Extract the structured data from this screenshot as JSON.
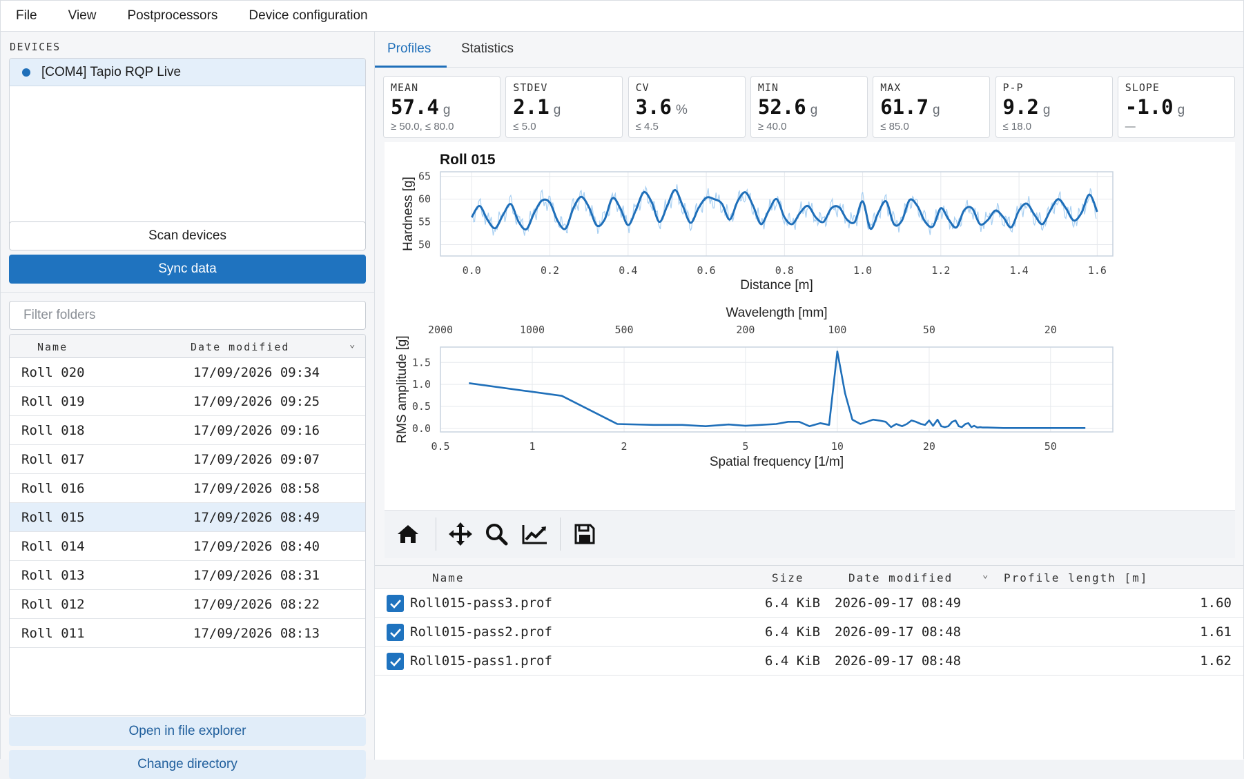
{
  "menu": [
    "File",
    "View",
    "Postprocessors",
    "Device configuration"
  ],
  "left": {
    "devices_title": "DEVICES",
    "device": "[COM4] Tapio RQP Live",
    "scan_label": "Scan devices",
    "sync_label": "Sync data",
    "filter_placeholder": "Filter folders",
    "table": {
      "col_name": "Name",
      "col_date": "Date modified",
      "rows": [
        {
          "name": "Roll 020",
          "date": "17/09/2026 09:34"
        },
        {
          "name": "Roll 019",
          "date": "17/09/2026 09:25"
        },
        {
          "name": "Roll 018",
          "date": "17/09/2026 09:16"
        },
        {
          "name": "Roll 017",
          "date": "17/09/2026 09:07"
        },
        {
          "name": "Roll 016",
          "date": "17/09/2026 08:58"
        },
        {
          "name": "Roll 015",
          "date": "17/09/2026 08:49"
        },
        {
          "name": "Roll 014",
          "date": "17/09/2026 08:40"
        },
        {
          "name": "Roll 013",
          "date": "17/09/2026 08:31"
        },
        {
          "name": "Roll 012",
          "date": "17/09/2026 08:22"
        },
        {
          "name": "Roll 011",
          "date": "17/09/2026 08:13"
        }
      ],
      "selected_index": 5
    },
    "open_label": "Open in file explorer",
    "change_label": "Change directory"
  },
  "tabs": [
    "Profiles",
    "Statistics"
  ],
  "active_tab": "Profiles",
  "stats": [
    {
      "label": "MEAN",
      "value": "57.4",
      "unit": "g",
      "limit": "≥ 50.0, ≤ 80.0"
    },
    {
      "label": "STDEV",
      "value": "2.1",
      "unit": "g",
      "limit": "≤ 5.0"
    },
    {
      "label": "CV",
      "value": "3.6",
      "unit": "%",
      "limit": "≤ 4.5"
    },
    {
      "label": "MIN",
      "value": "52.6",
      "unit": "g",
      "limit": "≥ 40.0"
    },
    {
      "label": "MAX",
      "value": "61.7",
      "unit": "g",
      "limit": "≤ 85.0"
    },
    {
      "label": "P-P",
      "value": "9.2",
      "unit": "g",
      "limit": "≤ 18.0"
    },
    {
      "label": "SLOPE",
      "value": "-1.0",
      "unit": "g",
      "limit": "—"
    }
  ],
  "files": {
    "columns": {
      "name": "Name",
      "size": "Size",
      "date": "Date modified",
      "length": "Profile length [m]"
    },
    "rows": [
      {
        "name": "Roll015-pass3.prof",
        "size": "6.4 KiB",
        "date": "2026-09-17 08:49",
        "length": "1.60",
        "checked": true
      },
      {
        "name": "Roll015-pass2.prof",
        "size": "6.4 KiB",
        "date": "2026-09-17 08:48",
        "length": "1.61",
        "checked": true
      },
      {
        "name": "Roll015-pass1.prof",
        "size": "6.4 KiB",
        "date": "2026-09-17 08:48",
        "length": "1.62",
        "checked": true
      }
    ]
  },
  "colors": {
    "accent": "#1f6fb9",
    "raw_trace": "#a9d0f2",
    "selection": "#e4effa"
  },
  "toolbar_icons": [
    "home-icon",
    "pan-icon",
    "zoom-icon",
    "configure-subplots-icon",
    "save-icon"
  ],
  "chart_data": [
    {
      "type": "line",
      "title": "Roll 015",
      "xlabel": "Distance [m]",
      "ylabel": "Hardness [g]",
      "xlim": [
        -0.08,
        1.64
      ],
      "ylim": [
        47.5,
        66
      ],
      "xticks": [
        "0.0",
        "0.2",
        "0.4",
        "0.6",
        "0.8",
        "1.0",
        "1.2",
        "1.4",
        "1.6"
      ],
      "yticks": [
        "50",
        "55",
        "60",
        "65"
      ],
      "grid": true,
      "series": [
        {
          "x": [
            0.0,
            0.02,
            0.04,
            0.06,
            0.08,
            0.1,
            0.12,
            0.14,
            0.16,
            0.18,
            0.2,
            0.22,
            0.24,
            0.26,
            0.28,
            0.3,
            0.32,
            0.34,
            0.36,
            0.38,
            0.4,
            0.42,
            0.44,
            0.46,
            0.48,
            0.5,
            0.52,
            0.54,
            0.56,
            0.58,
            0.6,
            0.62,
            0.64,
            0.66,
            0.68,
            0.7,
            0.72,
            0.74,
            0.76,
            0.78,
            0.8,
            0.82,
            0.84,
            0.86,
            0.88,
            0.9,
            0.92,
            0.94,
            0.96,
            0.98,
            1.0,
            1.02,
            1.04,
            1.06,
            1.08,
            1.1,
            1.12,
            1.14,
            1.16,
            1.18,
            1.2,
            1.22,
            1.24,
            1.26,
            1.28,
            1.3,
            1.32,
            1.34,
            1.36,
            1.38,
            1.4,
            1.42,
            1.44,
            1.46,
            1.48,
            1.5,
            1.52,
            1.54,
            1.56,
            1.58,
            1.6
          ],
          "values": [
            56.0,
            58.5,
            55.5,
            53.6,
            56.5,
            58.9,
            55.0,
            53.4,
            57.0,
            59.7,
            59.2,
            55.2,
            53.5,
            58.0,
            60.5,
            58.2,
            54.2,
            55.5,
            60.2,
            58.0,
            54.3,
            57.6,
            61.5,
            59.4,
            55.0,
            58.5,
            62.0,
            58.5,
            54.8,
            58.0,
            60.3,
            60.0,
            59.0,
            55.5,
            59.5,
            61.5,
            58.5,
            54.5,
            57.5,
            60.0,
            56.0,
            54.5,
            57.0,
            58.5,
            56.0,
            55.0,
            58.0,
            58.2,
            55.5,
            55.0,
            59.5,
            53.5,
            57.0,
            59.5,
            54.5,
            55.2,
            59.8,
            58.5,
            55.0,
            54.0,
            58.0,
            55.5,
            53.8,
            57.6,
            58.0,
            54.5,
            55.4,
            57.5,
            56.0,
            53.8,
            57.5,
            59.0,
            56.5,
            54.5,
            57.5,
            60.0,
            58.0,
            55.3,
            57.0,
            61.0,
            57.2
          ]
        }
      ]
    },
    {
      "type": "line",
      "xlabel": "Spatial frequency [1/m]",
      "ylabel": "RMS amplitude [g]",
      "x2label": "Wavelength [mm]",
      "xscale": "log",
      "xlim": [
        0.5,
        80
      ],
      "ylim": [
        -0.08,
        1.85
      ],
      "xticks": [
        "0.5",
        "1",
        "2",
        "5",
        "10",
        "20",
        "50"
      ],
      "x2ticks": [
        "2000",
        "1000",
        "500",
        "200",
        "100",
        "50",
        "20"
      ],
      "yticks": [
        "0.0",
        "0.5",
        "1.0",
        "1.5"
      ],
      "grid": true,
      "series": [
        {
          "x": [
            0.62,
            1.25,
            1.9,
            2.5,
            3.1,
            3.7,
            4.4,
            5.0,
            5.6,
            6.3,
            6.9,
            7.5,
            8.1,
            8.8,
            9.4,
            10.0,
            10.6,
            11.2,
            11.9,
            12.5,
            13.1,
            13.7,
            14.4,
            15.0,
            15.6,
            16.3,
            16.9,
            17.5,
            18.1,
            18.8,
            19.4,
            20.0,
            20.6,
            21.3,
            21.9,
            22.5,
            23.1,
            23.8,
            24.4,
            25.0,
            25.6,
            26.3,
            26.9,
            27.5,
            28.1,
            28.8,
            29.4,
            30.0,
            31.0,
            35.0,
            40.0,
            50.0,
            65.0
          ],
          "values": [
            1.03,
            0.74,
            0.1,
            0.08,
            0.08,
            0.05,
            0.09,
            0.06,
            0.08,
            0.1,
            0.15,
            0.15,
            0.05,
            0.12,
            0.08,
            1.75,
            0.8,
            0.2,
            0.1,
            0.15,
            0.2,
            0.18,
            0.15,
            0.03,
            0.1,
            0.05,
            0.1,
            0.18,
            0.15,
            0.1,
            0.08,
            0.18,
            0.06,
            0.2,
            0.05,
            0.03,
            0.05,
            0.15,
            0.18,
            0.05,
            0.03,
            0.1,
            0.12,
            0.03,
            0.06,
            0.02,
            0.03,
            0.02,
            0.02,
            0.01,
            0.01,
            0.01,
            0.01
          ]
        }
      ]
    }
  ]
}
